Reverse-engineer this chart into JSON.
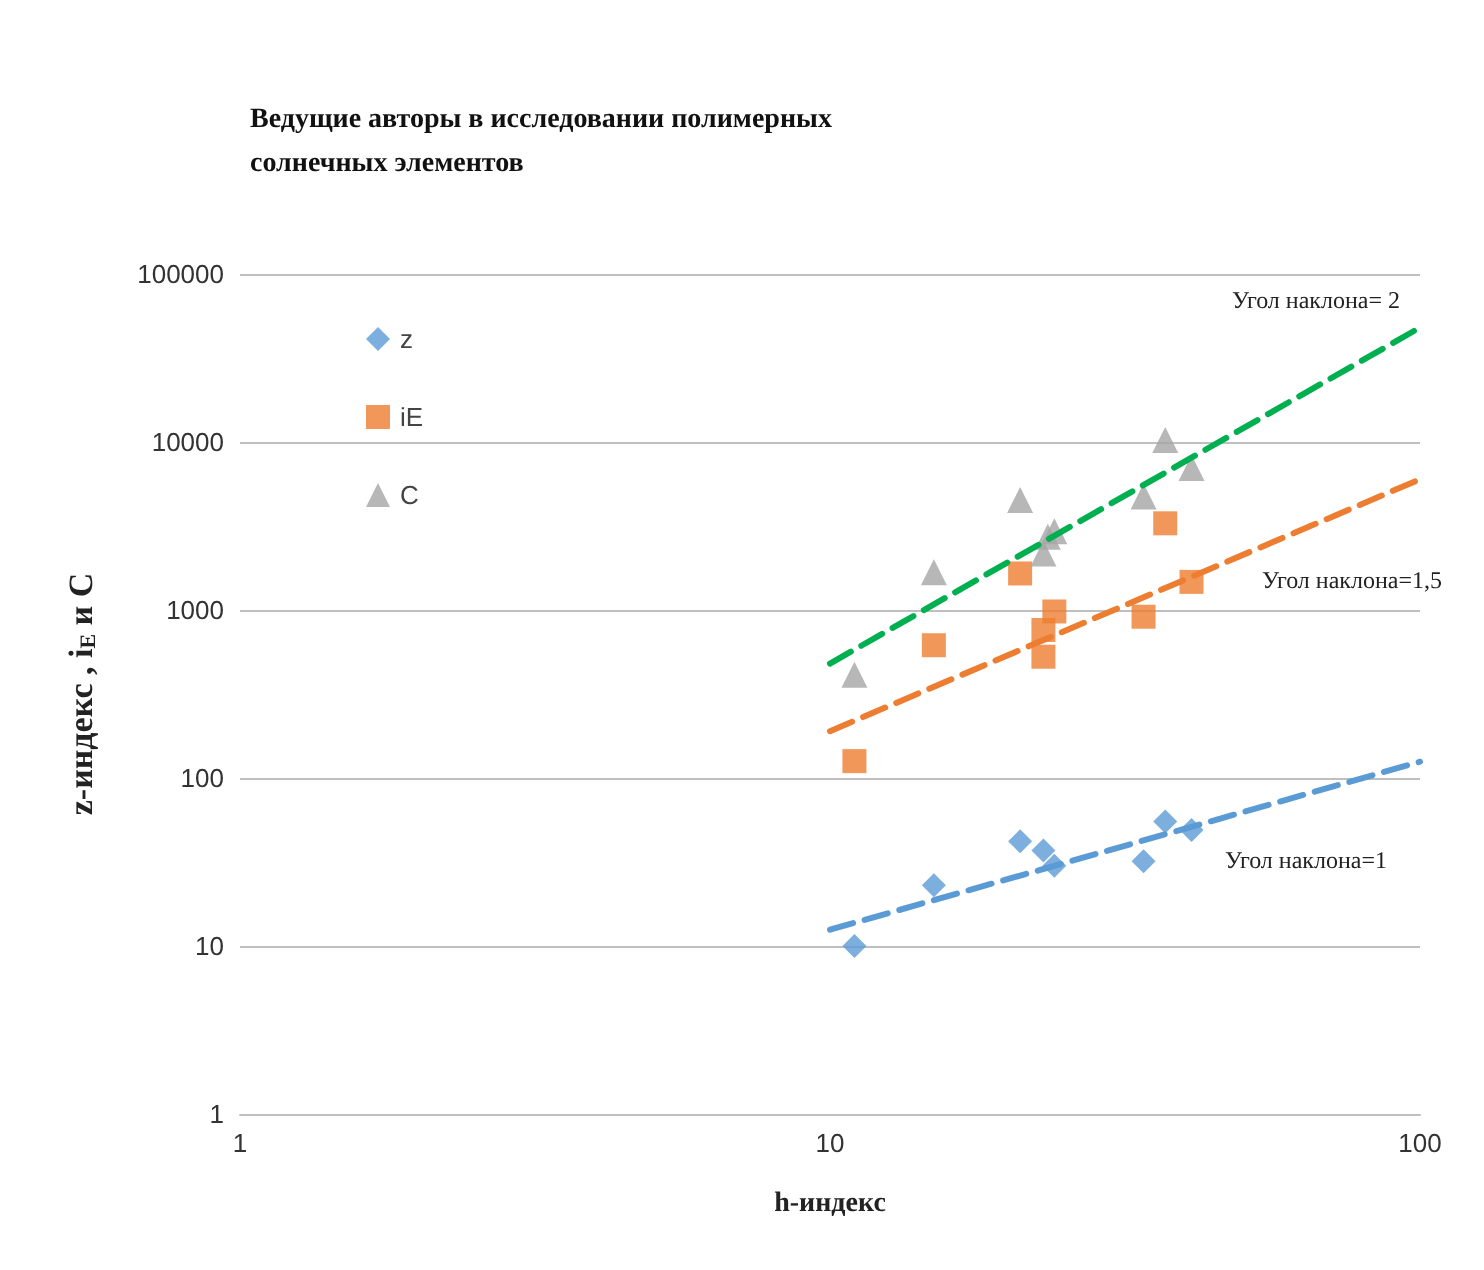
{
  "chart_data": {
    "type": "scatter",
    "title": "Ведущие авторы в исследовании полимерных солнечных элементов",
    "xlabel": "h-индекс",
    "ylabel": "z-индекс , i$_{E}$ и C",
    "log": "xy",
    "grid": "y",
    "legend": "top left",
    "xlim": [
      1,
      100
    ],
    "xticks": [
      1,
      10,
      100
    ],
    "ylim": [
      1,
      100000
    ],
    "yticks": [
      1,
      10,
      100,
      1000,
      10000,
      100000
    ],
    "series": [
      {
        "name": "z",
        "color": "#5b9bd5",
        "marker": "diamond",
        "x": [
          11,
          15,
          21,
          23,
          24,
          34,
          37,
          41
        ],
        "values": [
          10,
          23,
          42,
          37,
          30,
          32,
          55,
          49
        ]
      },
      {
        "name": "iE",
        "color": "#ed7d31",
        "marker": "square",
        "x": [
          11,
          15,
          21,
          23,
          23,
          24,
          34,
          37,
          41
        ],
        "values": [
          126,
          617,
          1650,
          760,
          527,
          980,
          912,
          3280,
          1470
        ]
      },
      {
        "name": "C",
        "color": "#a5a5a5",
        "marker": "triangle",
        "x": [
          11,
          15,
          21,
          23,
          23.4,
          24,
          34,
          37,
          41
        ],
        "values": [
          412,
          1680,
          4520,
          2170,
          2730,
          2940,
          4730,
          10280,
          7000
        ]
      },
      {
        "type": "line",
        "color": "#00b050",
        "marker": "none",
        "line_style": "dashed",
        "x": [
          10,
          100
        ],
        "values": [
          480,
          48000
        ]
      },
      {
        "type": "line",
        "color": "#ed7d31",
        "marker": "none",
        "line_style": "dashed",
        "x": [
          10,
          100
        ],
        "values": [
          190,
          6000
        ]
      },
      {
        "type": "line",
        "color": "#5b9bd5",
        "marker": "none",
        "line_style": "dashed",
        "x": [
          10,
          100
        ],
        "values": [
          12.5,
          125
        ]
      }
    ],
    "annotations": [
      "Угол наклона= 2",
      "Угол наклона=1,5",
      "Угол наклона=1"
    ]
  }
}
